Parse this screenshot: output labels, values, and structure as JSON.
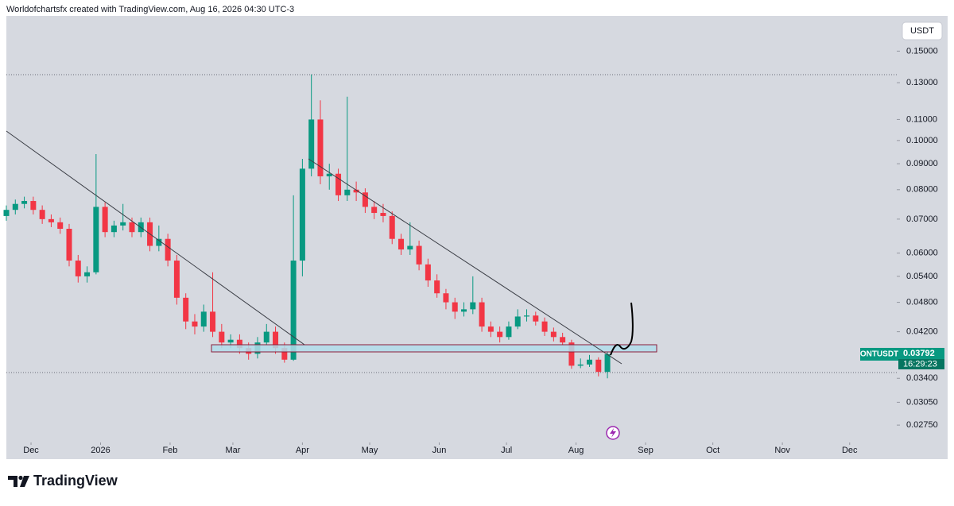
{
  "chart_data": {
    "type": "candlestick",
    "title": "Worldofchartsfx created with TradingView.com, Aug 16, 2026 04:30 UTC-3",
    "symbol": "ONTUSDT",
    "currency": "USDT",
    "countdown": "16:29:23",
    "brand": "TradingView",
    "log_scale": true,
    "grid": false,
    "up_color": "#089981",
    "down_color": "#f23645",
    "xlim": [
      0,
      397
    ],
    "xticks": [
      {
        "value": 11,
        "label": "Dec"
      },
      {
        "value": 42,
        "label": "2026"
      },
      {
        "value": 73,
        "label": "Feb"
      },
      {
        "value": 101,
        "label": "Mar"
      },
      {
        "value": 132,
        "label": "Apr"
      },
      {
        "value": 162,
        "label": "May"
      },
      {
        "value": 193,
        "label": "Jun"
      },
      {
        "value": 223,
        "label": "Jul"
      },
      {
        "value": 254,
        "label": "Aug"
      },
      {
        "value": 285,
        "label": "Sep"
      },
      {
        "value": 315,
        "label": "Oct"
      },
      {
        "value": 346,
        "label": "Nov"
      },
      {
        "value": 376,
        "label": "Dec"
      }
    ],
    "ylim": [
      0.0256,
      0.176
    ],
    "yticks": [
      {
        "value": 0.15,
        "label": "0.15000"
      },
      {
        "value": 0.13,
        "label": "0.13000"
      },
      {
        "value": 0.11,
        "label": "0.11000"
      },
      {
        "value": 0.1,
        "label": "0.10000"
      },
      {
        "value": 0.09,
        "label": "0.09000"
      },
      {
        "value": 0.08,
        "label": "0.08000"
      },
      {
        "value": 0.07,
        "label": "0.07000"
      },
      {
        "value": 0.06,
        "label": "0.06000"
      },
      {
        "value": 0.054,
        "label": "0.05400"
      },
      {
        "value": 0.048,
        "label": "0.04800"
      },
      {
        "value": 0.042,
        "label": "0.04200"
      },
      {
        "value": 0.034,
        "label": "0.03400"
      },
      {
        "value": 0.0305,
        "label": "0.03050"
      },
      {
        "value": 0.0275,
        "label": "0.02750"
      }
    ],
    "x": [
      0,
      4,
      8,
      12,
      16,
      20,
      24,
      28,
      32,
      36,
      40,
      44,
      48,
      52,
      56,
      60,
      64,
      68,
      72,
      76,
      80,
      84,
      88,
      92,
      96,
      100,
      104,
      108,
      112,
      116,
      120,
      124,
      128,
      132,
      136,
      140,
      144,
      148,
      152,
      156,
      160,
      164,
      168,
      172,
      176,
      180,
      184,
      188,
      192,
      196,
      200,
      204,
      208,
      212,
      216,
      220,
      224,
      228,
      232,
      236,
      240,
      244,
      248,
      252,
      256,
      260,
      264,
      268
    ],
    "open": [
      0.071,
      0.073,
      0.075,
      0.076,
      0.073,
      0.07,
      0.069,
      0.067,
      0.058,
      0.054,
      0.055,
      0.074,
      0.066,
      0.068,
      0.069,
      0.066,
      0.069,
      0.062,
      0.064,
      0.058,
      0.049,
      0.044,
      0.043,
      0.046,
      0.042,
      0.04,
      0.0405,
      0.039,
      0.038,
      0.04,
      0.042,
      0.039,
      0.037,
      0.058,
      0.088,
      0.11,
      0.085,
      0.086,
      0.078,
      0.08,
      0.079,
      0.074,
      0.072,
      0.071,
      0.064,
      0.061,
      0.062,
      0.057,
      0.053,
      0.05,
      0.048,
      0.046,
      0.0465,
      0.048,
      0.043,
      0.042,
      0.041,
      0.043,
      0.045,
      0.0452,
      0.044,
      0.042,
      0.041,
      0.04,
      0.036,
      0.0362,
      0.037,
      0.035
    ],
    "high": [
      0.0745,
      0.0765,
      0.0775,
      0.0775,
      0.0745,
      0.0715,
      0.0705,
      0.0685,
      0.0595,
      0.0565,
      0.094,
      0.0755,
      0.0695,
      0.075,
      0.0705,
      0.0705,
      0.0705,
      0.068,
      0.0655,
      0.0595,
      0.05,
      0.0455,
      0.0475,
      0.055,
      0.0435,
      0.0415,
      0.0415,
      0.04,
      0.041,
      0.0435,
      0.043,
      0.04,
      0.078,
      0.092,
      0.135,
      0.12,
      0.09,
      0.088,
      0.122,
      0.083,
      0.0805,
      0.076,
      0.075,
      0.0725,
      0.0655,
      0.069,
      0.0635,
      0.0585,
      0.0545,
      0.051,
      0.049,
      0.048,
      0.054,
      0.049,
      0.044,
      0.043,
      0.044,
      0.0465,
      0.0465,
      0.046,
      0.0448,
      0.0428,
      0.0418,
      0.0405,
      0.0372,
      0.0378,
      0.0374,
      0.0384
    ],
    "low": [
      0.0695,
      0.0715,
      0.0735,
      0.0715,
      0.0685,
      0.0675,
      0.0655,
      0.0565,
      0.0525,
      0.0525,
      0.0545,
      0.0645,
      0.0645,
      0.0665,
      0.0645,
      0.0645,
      0.0605,
      0.0605,
      0.0565,
      0.0475,
      0.0425,
      0.0415,
      0.042,
      0.041,
      0.039,
      0.039,
      0.038,
      0.037,
      0.0372,
      0.0395,
      0.038,
      0.0365,
      0.0368,
      0.054,
      0.085,
      0.082,
      0.08,
      0.076,
      0.076,
      0.076,
      0.072,
      0.07,
      0.069,
      0.0625,
      0.0595,
      0.0595,
      0.0555,
      0.0515,
      0.049,
      0.0465,
      0.0445,
      0.045,
      0.0455,
      0.042,
      0.041,
      0.04,
      0.0405,
      0.0425,
      0.044,
      0.0432,
      0.0412,
      0.0402,
      0.0395,
      0.0355,
      0.0356,
      0.0358,
      0.0343,
      0.034
    ],
    "close": [
      0.073,
      0.075,
      0.076,
      0.073,
      0.07,
      0.069,
      0.067,
      0.058,
      0.054,
      0.055,
      0.074,
      0.066,
      0.068,
      0.069,
      0.066,
      0.069,
      0.062,
      0.064,
      0.058,
      0.049,
      0.044,
      0.043,
      0.046,
      0.042,
      0.04,
      0.0405,
      0.039,
      0.038,
      0.04,
      0.042,
      0.039,
      0.037,
      0.058,
      0.088,
      0.11,
      0.085,
      0.086,
      0.078,
      0.08,
      0.079,
      0.074,
      0.072,
      0.071,
      0.064,
      0.061,
      0.062,
      0.057,
      0.053,
      0.05,
      0.048,
      0.046,
      0.0465,
      0.048,
      0.043,
      0.042,
      0.041,
      0.043,
      0.045,
      0.0452,
      0.044,
      0.042,
      0.041,
      0.04,
      0.036,
      0.0362,
      0.037,
      0.035,
      0.03792
    ]
  }
}
